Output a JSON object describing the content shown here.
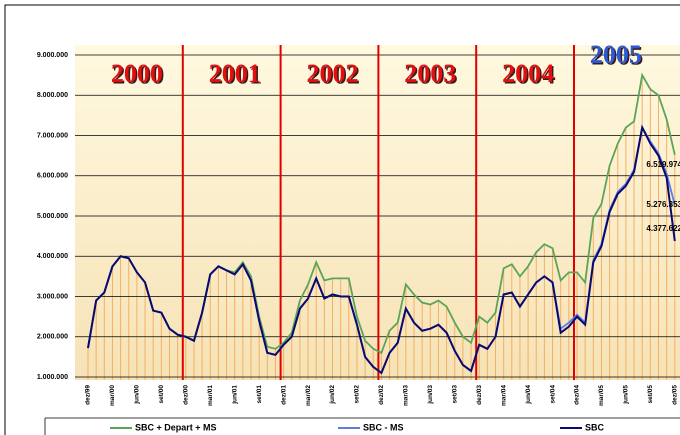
{
  "chart_data": {
    "type": "line",
    "categories": [
      "dez/99",
      null,
      null,
      "mar/00",
      null,
      null,
      "jun/00",
      null,
      null,
      "set/00",
      null,
      null,
      "dez/00",
      null,
      null,
      "mar/01",
      null,
      null,
      "jun/01",
      null,
      null,
      "set/01",
      null,
      null,
      "dez/01",
      null,
      null,
      "mar/02",
      null,
      null,
      "jun/02",
      null,
      null,
      "set/02",
      null,
      null,
      "dez/02",
      null,
      null,
      "mar/03",
      null,
      null,
      "jun/03",
      null,
      null,
      "set/03",
      null,
      null,
      "dez/03",
      null,
      null,
      "mar/04",
      null,
      null,
      "jun/04",
      null,
      null,
      "set/04",
      null,
      null,
      "dez/04",
      null,
      null,
      "mar/05",
      null,
      null,
      "jun/05",
      null,
      null,
      "set/05",
      null,
      null,
      "dez/05"
    ],
    "series": [
      {
        "name": "SBC + Depart + MS",
        "color": "#5aa55a",
        "end_label": "6.519.974",
        "values": [
          1720000,
          2900000,
          3100000,
          3750000,
          4000000,
          3950000,
          3600000,
          3350000,
          2650000,
          2600000,
          2200000,
          2050000,
          2000000,
          1900000,
          2600000,
          3550000,
          3750000,
          3650000,
          3600000,
          3850000,
          3500000,
          2500000,
          1750000,
          1700000,
          1850000,
          2100000,
          2900000,
          3300000,
          3850000,
          3400000,
          3450000,
          3450000,
          3450000,
          2500000,
          1900000,
          1700000,
          1600000,
          2150000,
          2350000,
          3300000,
          3050000,
          2850000,
          2800000,
          2900000,
          2750000,
          2350000,
          2000000,
          1850000,
          2500000,
          2350000,
          2600000,
          3700000,
          3800000,
          3500000,
          3750000,
          4100000,
          4300000,
          4200000,
          3400000,
          3600000,
          3600000,
          3350000,
          4950000,
          5300000,
          6250000,
          6800000,
          7200000,
          7350000,
          8500000,
          8150000,
          8000000,
          7400000,
          6519974
        ]
      },
      {
        "name": "SBC - MS",
        "color": "#5b7fe0",
        "end_label": "5.276.353",
        "values": [
          1720000,
          2900000,
          3100000,
          3750000,
          4000000,
          3950000,
          3600000,
          3350000,
          2650000,
          2600000,
          2200000,
          2050000,
          2000000,
          1900000,
          2600000,
          3550000,
          3750000,
          3650000,
          3550000,
          3800000,
          3400000,
          2400000,
          1600000,
          1550000,
          1800000,
          2000000,
          2700000,
          2950000,
          3450000,
          2950000,
          3050000,
          3000000,
          3000000,
          2300000,
          1500000,
          1250000,
          1100000,
          1600000,
          1850000,
          2700000,
          2350000,
          2150000,
          2200000,
          2300000,
          2100000,
          1650000,
          1300000,
          1150000,
          1800000,
          1700000,
          2000000,
          3050000,
          3100000,
          2750000,
          3050000,
          3350000,
          3500000,
          3350000,
          2200000,
          2350000,
          2550000,
          2350000,
          3900000,
          4300000,
          5150000,
          5600000,
          5800000,
          6150000,
          7200000,
          6850000,
          6550000,
          6050000,
          5276353
        ]
      },
      {
        "name": "SBC",
        "color": "#0a0a6e",
        "end_label": "4.377.622",
        "values": [
          1720000,
          2900000,
          3100000,
          3750000,
          4000000,
          3950000,
          3600000,
          3350000,
          2650000,
          2600000,
          2200000,
          2050000,
          2000000,
          1900000,
          2600000,
          3550000,
          3750000,
          3650000,
          3550000,
          3800000,
          3400000,
          2400000,
          1600000,
          1550000,
          1800000,
          2000000,
          2700000,
          2950000,
          3450000,
          2950000,
          3050000,
          3000000,
          3000000,
          2300000,
          1500000,
          1250000,
          1100000,
          1600000,
          1850000,
          2700000,
          2350000,
          2150000,
          2200000,
          2300000,
          2100000,
          1650000,
          1300000,
          1150000,
          1800000,
          1700000,
          2000000,
          3050000,
          3100000,
          2750000,
          3050000,
          3350000,
          3500000,
          3350000,
          2100000,
          2250000,
          2500000,
          2300000,
          3850000,
          4250000,
          5100000,
          5550000,
          5750000,
          6100000,
          7200000,
          6800000,
          6500000,
          5950000,
          4377622
        ]
      }
    ],
    "annotations": [
      "2000",
      "2001",
      "2002",
      "2003",
      "2004",
      "2005"
    ],
    "ylim": [
      1000000,
      9000000
    ],
    "yticks": [
      {
        "value": 1000000,
        "label": "1.000.000"
      },
      {
        "value": 2000000,
        "label": "2.000.000"
      },
      {
        "value": 3000000,
        "label": "3.000.000"
      },
      {
        "value": 4000000,
        "label": "4.000.000"
      },
      {
        "value": 5000000,
        "label": "5.000.000"
      },
      {
        "value": 6000000,
        "label": "6.000.000"
      },
      {
        "value": 7000000,
        "label": "7.000.000"
      },
      {
        "value": 8000000,
        "label": "8.000.000"
      },
      {
        "value": 9000000,
        "label": "9.000.000"
      }
    ],
    "grid": true
  }
}
